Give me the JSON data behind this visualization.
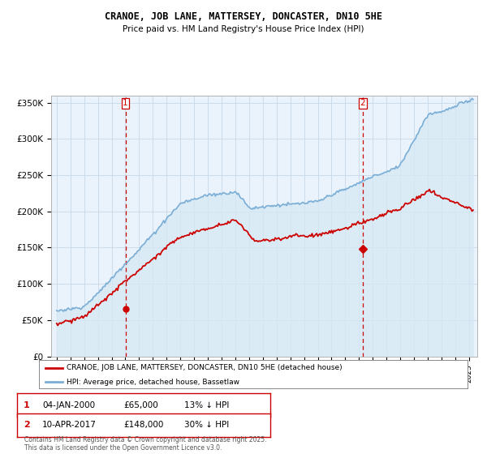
{
  "title": "CRANOE, JOB LANE, MATTERSEY, DONCASTER, DN10 5HE",
  "subtitle": "Price paid vs. HM Land Registry's House Price Index (HPI)",
  "sale1_date": "04-JAN-2000",
  "sale1_price": 65000,
  "sale1_label": "13% ↓ HPI",
  "sale2_date": "10-APR-2017",
  "sale2_price": 148000,
  "sale2_label": "30% ↓ HPI",
  "legend_label1": "CRANOE, JOB LANE, MATTERSEY, DONCASTER, DN10 5HE (detached house)",
  "legend_label2": "HPI: Average price, detached house, Bassetlaw",
  "footer": "Contains HM Land Registry data © Crown copyright and database right 2025.\nThis data is licensed under the Open Government Licence v3.0.",
  "hpi_color": "#7aaed6",
  "hpi_fill_color": "#d6e8f5",
  "price_color": "#cc0000",
  "vline_color": "#cc0000",
  "ylim_min": 0,
  "ylim_max": 360000,
  "yticks": [
    0,
    50000,
    100000,
    150000,
    200000,
    250000,
    300000,
    350000
  ],
  "ytick_labels": [
    "£0",
    "£50K",
    "£100K",
    "£150K",
    "£200K",
    "£250K",
    "£300K",
    "£350K"
  ],
  "background_color": "#ffffff",
  "chart_bg_color": "#eaf3fb",
  "grid_color": "#c8d8e8"
}
